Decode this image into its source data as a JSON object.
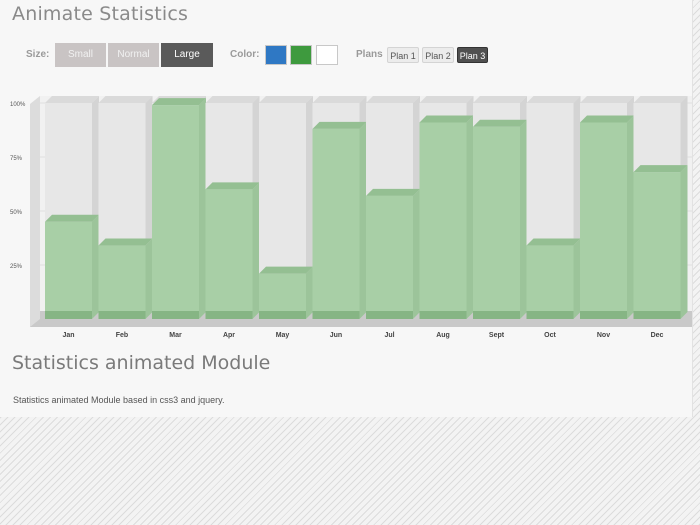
{
  "header": {
    "title": "Animate Statistics"
  },
  "toolbar": {
    "size_label": "Size:",
    "sizes": [
      "Small",
      "Normal",
      "Large"
    ],
    "size_selected": "Large",
    "color_label": "Color:",
    "colors": [
      "#2f78c4",
      "#3e9a3e",
      "#ffffff"
    ],
    "plans_label": "Plans",
    "plans": [
      "Plan 1",
      "Plan 2",
      "Plan 3"
    ],
    "plan_selected": "Plan 3"
  },
  "chart_data": {
    "type": "bar",
    "categories": [
      "Jan",
      "Feb",
      "Mar",
      "Apr",
      "May",
      "Jun",
      "Jul",
      "Aug",
      "Sept",
      "Oct",
      "Nov",
      "Dec"
    ],
    "values": [
      45,
      34,
      99,
      60,
      21,
      88,
      57,
      91,
      89,
      34,
      91,
      68
    ],
    "ylim": [
      0,
      100
    ],
    "ytick_labels": [
      "100%",
      "75%",
      "50%",
      "25%"
    ],
    "bar_color": "#a8cfa6",
    "track_color": "#e7e7e7",
    "grid": true
  },
  "footer": {
    "subtitle": "Statistics animated Module",
    "description": "Statistics animated Module based in css3 and jquery."
  }
}
